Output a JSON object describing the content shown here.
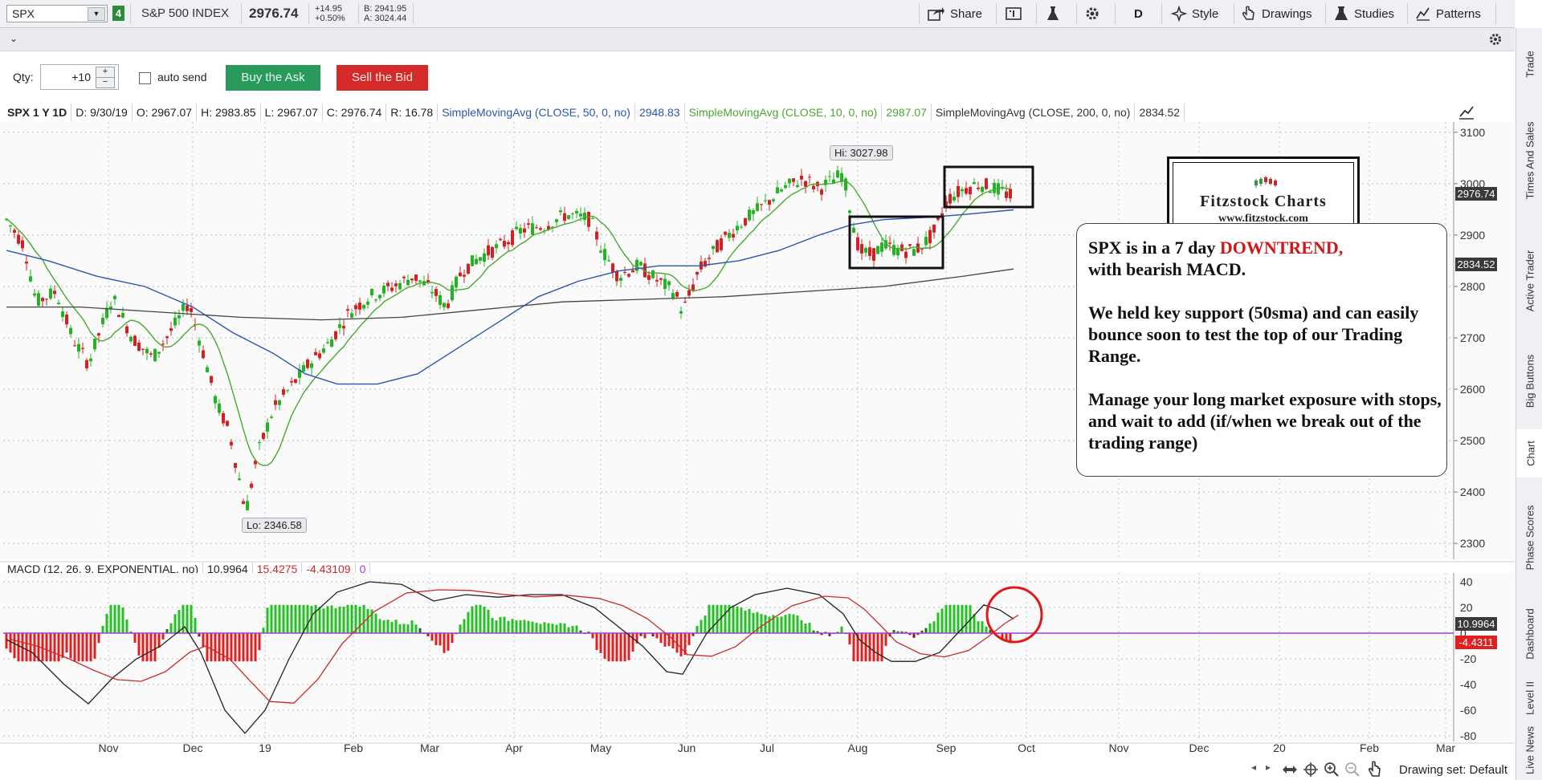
{
  "toolbar": {
    "symbol": "SPX",
    "link_number": "4",
    "instrument_name": "S&P 500 INDEX",
    "last_price": "2976.74",
    "net_change": "+14.95",
    "pct_change": "+0.50%",
    "bid": "B: 2941.95",
    "ask": "A: 3024.44",
    "share_label": "Share",
    "period_label": "D",
    "style_label": "Style",
    "drawings_label": "Drawings",
    "studies_label": "Studies",
    "patterns_label": "Patterns"
  },
  "order_bar": {
    "qty_label": "Qty:",
    "qty_value": "+10",
    "auto_send_label": "auto send",
    "buy_label": "Buy the Ask",
    "sell_label": "Sell the Bid"
  },
  "study_header": {
    "title": "SPX 1 Y 1D",
    "date": "D: 9/30/19",
    "open": "O: 2967.07",
    "high": "H: 2983.85",
    "low": "L: 2967.07",
    "close": "C: 2976.74",
    "range": "R: 16.78",
    "sma50_label": "SimpleMovingAvg (CLOSE, 50, 0, no)",
    "sma50_value": "2948.83",
    "sma10_label": "SimpleMovingAvg (CLOSE, 10, 0, no)",
    "sma10_value": "2987.07",
    "sma200_label": "SimpleMovingAvg (CLOSE, 200, 0, no)",
    "sma200_value": "2834.52"
  },
  "macd_header": {
    "label": "MACD (12, 26, 9, EXPONENTIAL, no)",
    "value": "10.9964",
    "avg": "15.4275",
    "diff": "-4.43109",
    "zero": "0"
  },
  "price_axis": [
    "3100",
    "3000",
    "2900",
    "2800",
    "2700",
    "2600",
    "2500",
    "2400",
    "2300"
  ],
  "macd_axis": [
    "40",
    "20",
    "0",
    "-20",
    "-40",
    "-60",
    "-80"
  ],
  "time_axis": [
    "Nov",
    "Dec",
    "19",
    "Feb",
    "Mar",
    "Apr",
    "May",
    "Jun",
    "Jul",
    "Aug",
    "Sep",
    "Oct",
    "Nov",
    "Dec",
    "20",
    "Feb",
    "Mar"
  ],
  "markers": {
    "hi_label": "Hi: 3027.98",
    "lo_label": "Lo: 2346.58",
    "last_tag": "2976.74",
    "sma200_tag": "2834.52",
    "macd_tag": "10.9964",
    "diff_tag": "-4.4311"
  },
  "annotation": {
    "line1a": "SPX is in a 7 day ",
    "line1b": "DOWNTREND,",
    "line1c": "with bearish MACD.",
    "para2": "We held key support (50sma) and can easily bounce soon to test the top of our Trading Range.",
    "para3": "Manage your long market exposure with stops, and wait to add (if/when we break out of the trading range)"
  },
  "logo": {
    "title": "Fitzstock Charts",
    "url": "www.fitzstock.com"
  },
  "side_tabs": [
    "Trade",
    "Times And Sales",
    "Active Trader",
    "Big Buttons",
    "Chart",
    "Phase Scores",
    "Dashboard",
    "Level II",
    "Live News"
  ],
  "bottom": {
    "drawing_set": "Drawing set: Default"
  },
  "colors": {
    "up": "#22b422",
    "down": "#d42020",
    "sma10": "#4aa82e",
    "sma50": "#2a56b0",
    "sma200": "#444444",
    "macd_line": "#222222",
    "macd_avg": "#cc2a2a",
    "zero_line": "#a040d0"
  },
  "chart_data": [
    {
      "type": "candlestick",
      "title": "SPX 1 Y 1D",
      "ylim": [
        2280,
        3120
      ],
      "series": [
        {
          "name": "SimpleMovingAvg (CLOSE, 10, 0, no)",
          "last": 2987.07
        },
        {
          "name": "SimpleMovingAvg (CLOSE, 50, 0, no)",
          "last": 2948.83
        },
        {
          "name": "SimpleMovingAvg (CLOSE, 200, 0, no)",
          "last": 2834.52
        }
      ],
      "close_path": [
        [
          "Oct",
          2900
        ],
        [
          "Oct",
          2770
        ],
        [
          "Nov",
          2740
        ],
        [
          "Nov",
          2780
        ],
        [
          "Nov",
          2700
        ],
        [
          "Dec",
          2790
        ],
        [
          "Dec",
          2630
        ],
        [
          "Dec",
          2500
        ],
        [
          "Dec",
          2360
        ],
        [
          "19",
          2470
        ],
        [
          "Jan",
          2610
        ],
        [
          "Feb",
          2700
        ],
        [
          "Feb",
          2780
        ],
        [
          "Mar",
          2800
        ],
        [
          "Mar",
          2760
        ],
        [
          "Apr",
          2860
        ],
        [
          "Apr",
          2910
        ],
        [
          "May",
          2940
        ],
        [
          "May",
          2840
        ],
        [
          "Jun",
          2760
        ],
        [
          "Jun",
          2870
        ],
        [
          "Jul",
          2980
        ],
        [
          "Jul",
          3020
        ],
        [
          "Aug",
          2880
        ],
        [
          "Aug",
          2870
        ],
        [
          "Sep",
          2930
        ],
        [
          "Sep",
          3000
        ],
        [
          "Sep",
          2977
        ]
      ],
      "hi": 3027.98,
      "lo": 2346.58,
      "last": 2976.74
    },
    {
      "type": "line",
      "title": "MACD (12, 26, 9, EXPONENTIAL, no)",
      "ylim": [
        -80,
        45
      ],
      "series": [
        {
          "name": "Value",
          "last": 10.9964
        },
        {
          "name": "Avg",
          "last": 15.4275
        },
        {
          "name": "Diff",
          "last": -4.43109
        }
      ]
    }
  ]
}
